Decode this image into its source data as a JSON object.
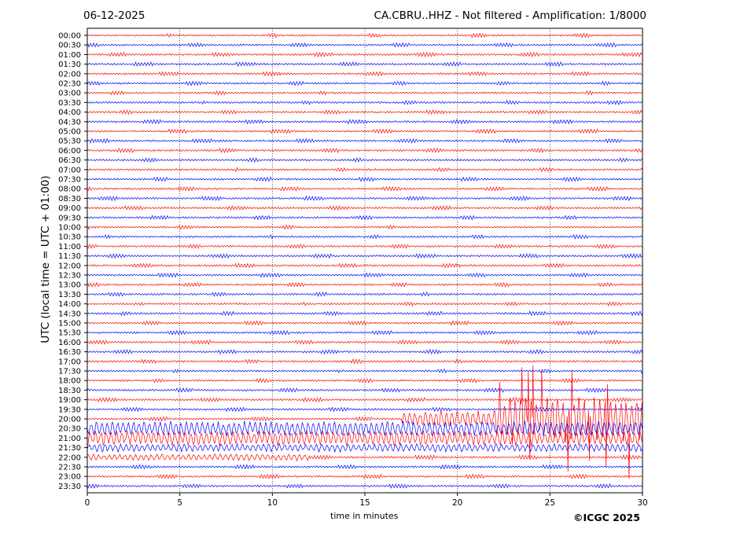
{
  "header": {
    "date": "06-12-2025",
    "title": "CA.CBRU..HHZ - Not filtered - Amplification: 1/8000"
  },
  "footer": {
    "copyright": "©ICGC 2025"
  },
  "chart_data": {
    "type": "line",
    "xlabel": "time in minutes",
    "ylabel": "UTC (local time = UTC + 01:00)",
    "xlim": [
      0,
      30
    ],
    "x_ticks": [
      0,
      5,
      10,
      15,
      20,
      25,
      30
    ],
    "grid": "vertical dotted lines at each x tick",
    "row_labels": [
      "00:00",
      "00:30",
      "01:00",
      "01:30",
      "02:00",
      "02:30",
      "03:00",
      "03:30",
      "04:00",
      "04:30",
      "05:00",
      "05:30",
      "06:00",
      "06:30",
      "07:00",
      "07:30",
      "08:00",
      "08:30",
      "09:00",
      "09:30",
      "10:00",
      "10:30",
      "11:00",
      "11:30",
      "12:00",
      "12:30",
      "13:00",
      "13:30",
      "14:00",
      "14:30",
      "15:00",
      "15:30",
      "16:00",
      "16:30",
      "17:00",
      "17:30",
      "18:00",
      "18:30",
      "19:00",
      "19:30",
      "20:00",
      "20:30",
      "21:00",
      "21:30",
      "22:00",
      "22:30",
      "23:00",
      "23:30"
    ],
    "trace_colors": [
      "#ff0000",
      "#0000ff"
    ],
    "active_segments": [
      {
        "row": "20:00",
        "from_minute": 17,
        "to_minute": 30
      },
      {
        "row": "20:30",
        "from_minute": 0,
        "to_minute": 30
      },
      {
        "row": "21:00",
        "from_minute": 0,
        "to_minute": 30
      },
      {
        "row": "21:30",
        "from_minute": 0,
        "to_minute": 30
      },
      {
        "row": "22:00",
        "from_minute": 0,
        "to_minute": 12
      }
    ]
  }
}
